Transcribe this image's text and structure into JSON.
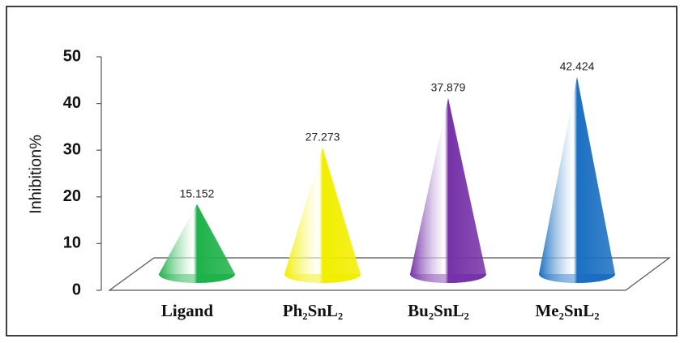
{
  "chart_data": {
    "type": "cone",
    "y_label": "Inhibition%",
    "categories": [
      "Ligand",
      "Ph₂SnL₂",
      "Bu₂SnL₂",
      "Me₂SnL₂"
    ],
    "values": [
      15.152,
      27.273,
      37.879,
      42.424
    ],
    "colors": [
      "#1fb24b",
      "#f2ee00",
      "#7632a8",
      "#1b6fc2"
    ],
    "ylim": [
      0,
      50
    ],
    "yticks": [
      0,
      10,
      20,
      30,
      40,
      50
    ]
  }
}
